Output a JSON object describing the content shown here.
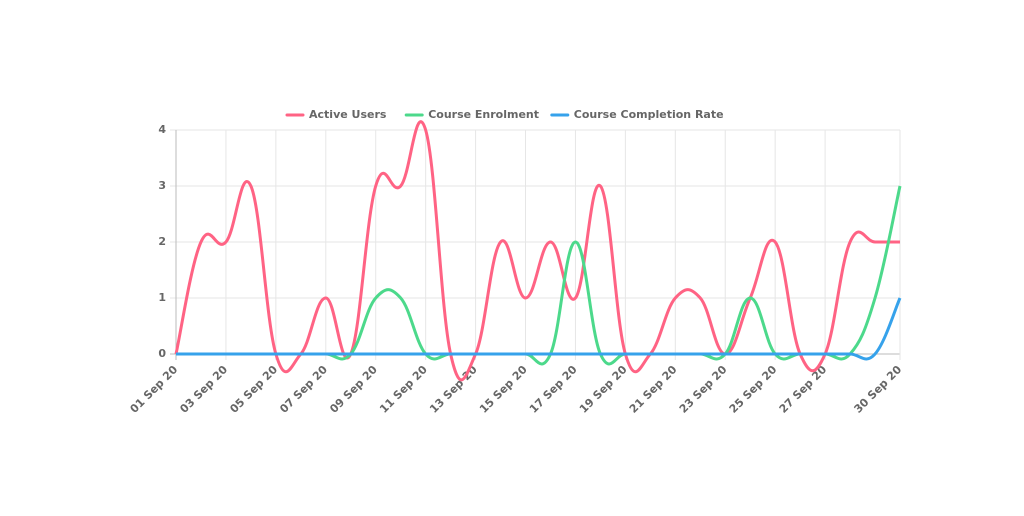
{
  "chart_data": {
    "type": "line",
    "categories": [
      "01 Sep 20",
      null,
      "03 Sep 20",
      null,
      "05 Sep 20",
      null,
      "07 Sep 20",
      null,
      "09 Sep 20",
      null,
      "11 Sep 20",
      null,
      "13 Sep 20",
      null,
      "15 Sep 20",
      null,
      "17 Sep 20",
      null,
      "19 Sep 20",
      null,
      "21 Sep 20",
      null,
      "23 Sep 20",
      null,
      "25 Sep 20",
      null,
      "27 Sep 20",
      null,
      null,
      "30 Sep 20"
    ],
    "series": [
      {
        "name": "Active Users",
        "color": "#ff6384",
        "values": [
          0,
          2,
          2,
          3,
          0,
          0,
          1,
          0,
          3,
          3,
          4,
          0,
          0,
          2,
          1,
          2,
          1,
          3,
          0,
          0,
          1,
          1,
          0,
          1,
          2,
          0,
          0,
          2,
          2,
          2
        ]
      },
      {
        "name": "Course Enrolment",
        "color": "#4cd98b",
        "values": [
          0,
          0,
          0,
          0,
          0,
          0,
          0,
          0,
          1,
          1,
          0,
          0,
          0,
          0,
          0,
          0,
          2,
          0,
          0,
          0,
          0,
          0,
          0,
          1,
          0,
          0,
          0,
          0,
          1,
          3
        ]
      },
      {
        "name": "Course Completion Rate",
        "color": "#36a2eb",
        "values": [
          0,
          0,
          0,
          0,
          0,
          0,
          0,
          0,
          0,
          0,
          0,
          0,
          0,
          0,
          0,
          0,
          0,
          0,
          0,
          0,
          0,
          0,
          0,
          0,
          0,
          0,
          0,
          0,
          0,
          1
        ]
      }
    ],
    "ylim": [
      0,
      4
    ],
    "yticks": [
      0,
      1,
      2,
      3,
      4
    ],
    "grid": true,
    "legend": "top"
  }
}
